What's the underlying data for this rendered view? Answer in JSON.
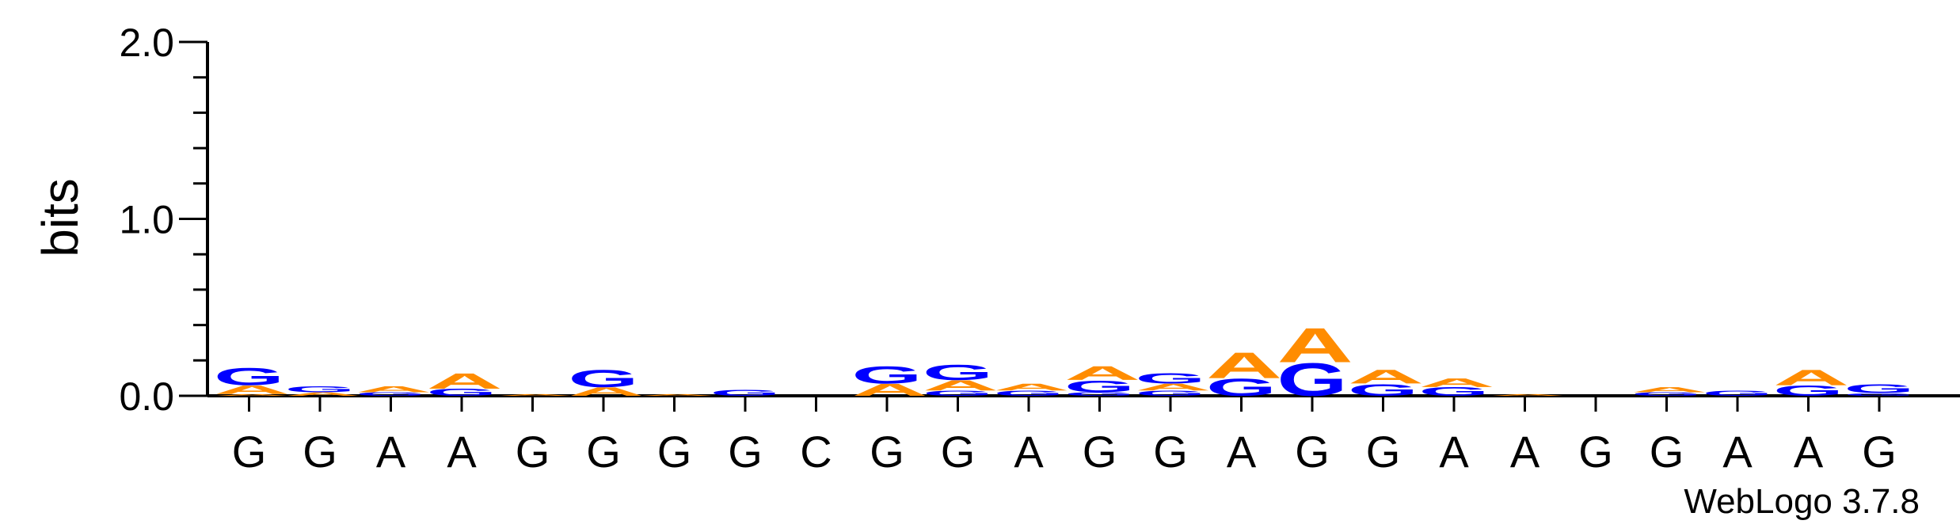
{
  "chart_data": {
    "type": "sequence-logo",
    "ylabel": "bits",
    "ylim": [
      0,
      2.0
    ],
    "yticks": [
      "0.0",
      "1.0",
      "2.0"
    ],
    "xlabels": [
      "G",
      "G",
      "A",
      "A",
      "G",
      "G",
      "G",
      "G",
      "C",
      "G",
      "G",
      "A",
      "G",
      "G",
      "A",
      "G",
      "G",
      "A",
      "A",
      "G",
      "G",
      "A",
      "A",
      "G"
    ],
    "colors": {
      "A": "#ff8c00",
      "G": "#0000ff",
      "C": "#0000ff",
      "T": "#ff0000"
    },
    "stacks": [
      [
        {
          "l": "A",
          "h": 0.01
        },
        {
          "l": "A",
          "h": 0.05
        },
        {
          "l": "G",
          "h": 0.1
        }
      ],
      [
        {
          "l": "A",
          "h": 0.02
        },
        {
          "l": "G",
          "h": 0.035
        }
      ],
      [
        {
          "l": "G",
          "h": 0.02
        },
        {
          "l": "A",
          "h": 0.035
        }
      ],
      [
        {
          "l": "G",
          "h": 0.04
        },
        {
          "l": "A",
          "h": 0.09
        }
      ],
      [
        {
          "l": "A",
          "h": 0.01
        }
      ],
      [
        {
          "l": "A",
          "h": 0.05
        },
        {
          "l": "G",
          "h": 0.1
        }
      ],
      [
        {
          "l": "A",
          "h": 0.01
        }
      ],
      [
        {
          "l": "G",
          "h": 0.035
        }
      ],
      [],
      [
        {
          "l": "A",
          "h": 0.07
        },
        {
          "l": "G",
          "h": 0.1
        }
      ],
      [
        {
          "l": "G",
          "h": 0.03
        },
        {
          "l": "A",
          "h": 0.06
        },
        {
          "l": "G",
          "h": 0.09
        }
      ],
      [
        {
          "l": "G",
          "h": 0.03
        },
        {
          "l": "A",
          "h": 0.04
        }
      ],
      [
        {
          "l": "G",
          "h": 0.02
        },
        {
          "l": "G",
          "h": 0.07
        },
        {
          "l": "A",
          "h": 0.08
        }
      ],
      [
        {
          "l": "G",
          "h": 0.03
        },
        {
          "l": "A",
          "h": 0.04
        },
        {
          "l": "G",
          "h": 0.06
        }
      ],
      [
        {
          "l": "G",
          "h": 0.1
        },
        {
          "l": "A",
          "h": 0.15
        }
      ],
      [
        {
          "l": "G",
          "h": 0.19
        },
        {
          "l": "A",
          "h": 0.2
        }
      ],
      [
        {
          "l": "G",
          "h": 0.07
        },
        {
          "l": "A",
          "h": 0.08
        }
      ],
      [
        {
          "l": "G",
          "h": 0.05
        },
        {
          "l": "A",
          "h": 0.05
        }
      ],
      [
        {
          "l": "A",
          "h": 0.01
        }
      ],
      [],
      [
        {
          "l": "G",
          "h": 0.02
        },
        {
          "l": "A",
          "h": 0.03
        }
      ],
      [
        {
          "l": "G",
          "h": 0.03
        }
      ],
      [
        {
          "l": "G",
          "h": 0.06
        },
        {
          "l": "A",
          "h": 0.09
        }
      ],
      [
        {
          "l": "G",
          "h": 0.015
        },
        {
          "l": "G",
          "h": 0.05
        }
      ]
    ]
  },
  "credit": "WebLogo 3.7.8"
}
